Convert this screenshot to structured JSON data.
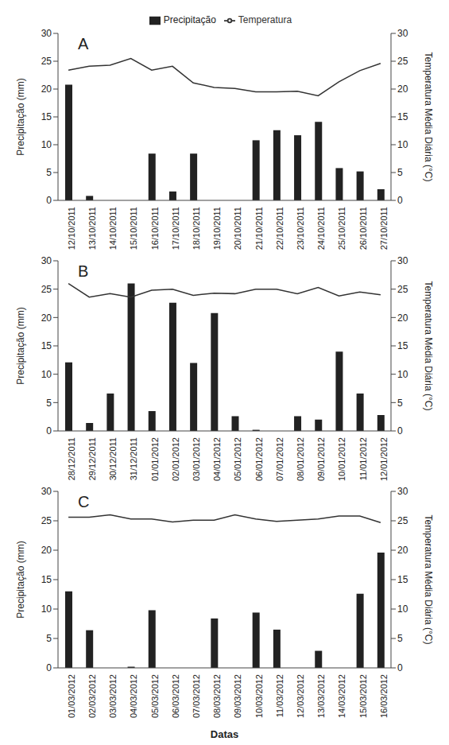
{
  "chart_data": [
    {
      "type": "bar",
      "title": "A",
      "ylabel": "Precipitação (mm)",
      "y2label": "Temperatura Média Diária (°C)",
      "legend": "top",
      "categories": [
        "12/10/2011",
        "13/10/2011",
        "14/10/2011",
        "15/10/2011",
        "16/10/2011",
        "17/10/2011",
        "18/10/2011",
        "19/10/2011",
        "20/10/2011",
        "21/10/2011",
        "22/10/2011",
        "23/10/2011",
        "24/10/2011",
        "25/10/2011",
        "26/10/2011",
        "27/10/2011"
      ],
      "ylim": [
        0,
        30
      ],
      "yticks": [
        0,
        5,
        10,
        15,
        20,
        25,
        30
      ],
      "y2lim": [
        0,
        30
      ],
      "y2ticks": [
        0,
        5,
        10,
        15,
        20,
        25,
        30
      ],
      "series": [
        {
          "name": "Precipitação",
          "type": "bar",
          "color": "#222222",
          "values": [
            20.8,
            0.8,
            0,
            0,
            8.4,
            1.6,
            8.4,
            0,
            0,
            10.8,
            12.6,
            11.7,
            14.1,
            5.8,
            5.2,
            2.0
          ]
        },
        {
          "name": "Temperatura",
          "type": "line",
          "color": "#333333",
          "axis": "y2",
          "values": [
            23.4,
            24.1,
            24.3,
            25.5,
            23.4,
            24.1,
            21.1,
            20.3,
            20.1,
            19.5,
            19.5,
            19.6,
            18.8,
            21.3,
            23.3,
            24.6
          ]
        }
      ]
    },
    {
      "type": "bar",
      "title": "B",
      "ylabel": "Precipitação (mm)",
      "y2label": "Temperatura Média Diária (°C)",
      "categories": [
        "28/12/2011",
        "29/12/2011",
        "30/12/2011",
        "31/12/2011",
        "01/01/2012",
        "02/01/2012",
        "03/01/2012",
        "04/01/2012",
        "05/01/2012",
        "06/01/2012",
        "07/01/2012",
        "08/01/2012",
        "09/01/2012",
        "10/01/2012",
        "11/01/2012",
        "12/01/2012"
      ],
      "ylim": [
        0,
        30
      ],
      "yticks": [
        0,
        5,
        10,
        15,
        20,
        25,
        30
      ],
      "y2lim": [
        0,
        30
      ],
      "y2ticks": [
        0,
        5,
        10,
        15,
        20,
        25,
        30
      ],
      "series": [
        {
          "name": "Precipitação",
          "type": "bar",
          "color": "#222222",
          "values": [
            12.1,
            1.4,
            6.6,
            26.0,
            3.5,
            22.6,
            12.0,
            20.8,
            2.6,
            0.2,
            0,
            2.6,
            2.0,
            14.0,
            6.6,
            2.8
          ]
        },
        {
          "name": "Temperatura",
          "type": "line",
          "color": "#333333",
          "axis": "y2",
          "values": [
            26.0,
            23.6,
            24.2,
            23.6,
            24.8,
            25.0,
            23.9,
            24.3,
            24.2,
            25.0,
            25.0,
            24.2,
            25.3,
            23.8,
            24.5,
            24.0
          ]
        }
      ]
    },
    {
      "type": "bar",
      "title": "C",
      "xlabel": "Datas",
      "ylabel": "Precipitação (mm)",
      "y2label": "Temperatura Média Diária (°C)",
      "categories": [
        "01/03/2012",
        "02/03/2012",
        "03/03/2012",
        "04/03/2012",
        "05/03/2012",
        "06/03/2012",
        "07/03/2012",
        "08/03/2012",
        "09/03/2012",
        "10/03/2012",
        "11/03/2012",
        "12/03/2012",
        "13/03/2012",
        "14/03/2012",
        "15/03/2012",
        "16/03/2012"
      ],
      "ylim": [
        0,
        30
      ],
      "yticks": [
        0,
        5,
        10,
        15,
        20,
        25,
        30
      ],
      "y2lim": [
        0,
        30
      ],
      "y2ticks": [
        0,
        5,
        10,
        15,
        20,
        25,
        30
      ],
      "series": [
        {
          "name": "Precipitação",
          "type": "bar",
          "color": "#222222",
          "values": [
            13.0,
            6.4,
            0,
            0.2,
            9.8,
            0,
            0,
            8.4,
            0,
            9.4,
            6.5,
            0,
            2.9,
            0,
            12.6,
            19.6
          ]
        },
        {
          "name": "Temperatura",
          "type": "line",
          "color": "#333333",
          "axis": "y2",
          "values": [
            25.6,
            25.6,
            26.0,
            25.3,
            25.3,
            24.8,
            25.1,
            25.1,
            26.0,
            25.3,
            24.9,
            25.1,
            25.3,
            25.8,
            25.8,
            24.7
          ]
        }
      ]
    }
  ]
}
